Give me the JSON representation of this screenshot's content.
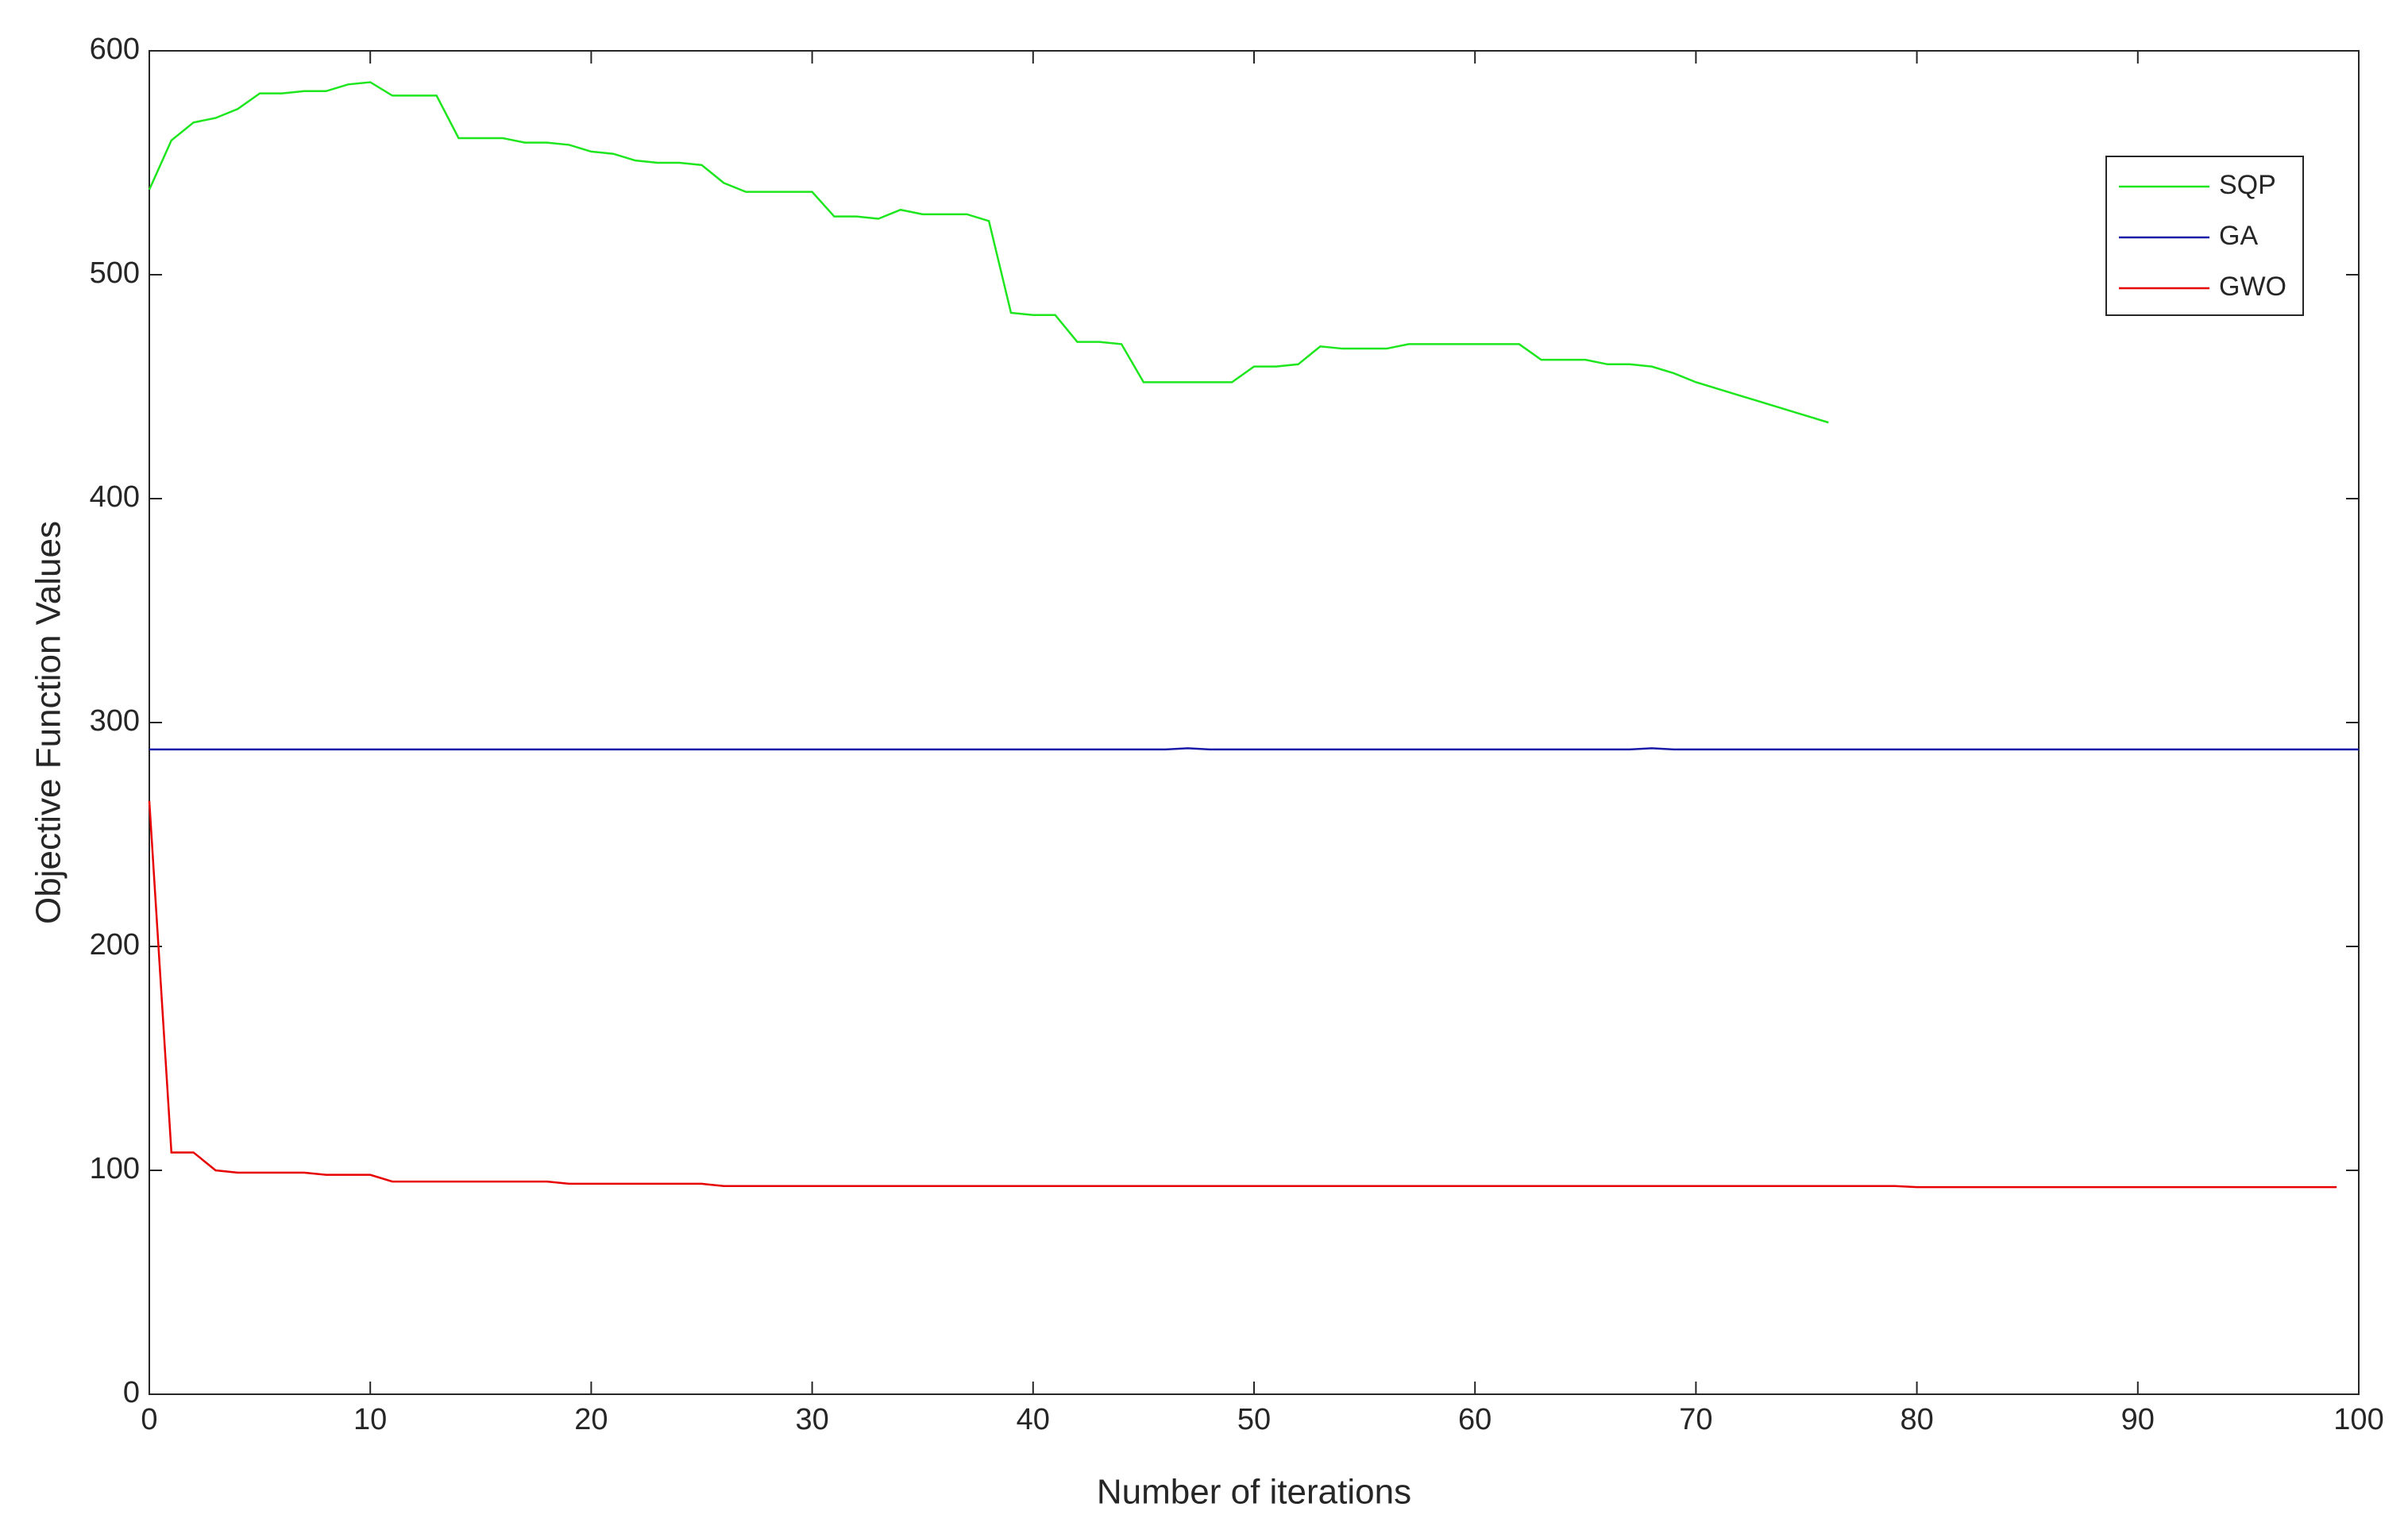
{
  "chart_data": {
    "type": "line",
    "xlabel": "Number of iterations",
    "ylabel": "Objective Function Values",
    "xlim": [
      0,
      100
    ],
    "ylim": [
      0,
      600
    ],
    "xticks": [
      0,
      10,
      20,
      30,
      40,
      50,
      60,
      70,
      80,
      90,
      100
    ],
    "yticks": [
      0,
      100,
      200,
      300,
      400,
      500,
      600
    ],
    "grid": false,
    "legend": "upper right",
    "x": [
      0,
      1,
      2,
      3,
      4,
      5,
      6,
      7,
      8,
      9,
      10,
      11,
      12,
      13,
      14,
      15,
      16,
      17,
      18,
      19,
      20,
      21,
      22,
      23,
      24,
      25,
      26,
      27,
      28,
      29,
      30,
      31,
      32,
      33,
      34,
      35,
      36,
      37,
      38,
      39,
      40,
      41,
      42,
      43,
      44,
      45,
      46,
      47,
      48,
      49,
      50,
      51,
      52,
      53,
      54,
      55,
      56,
      57,
      58,
      59,
      60,
      61,
      62,
      63,
      64,
      65,
      66,
      67,
      68,
      69,
      70,
      71,
      72,
      73,
      74,
      75,
      76,
      77,
      78,
      79,
      80,
      81,
      82,
      83,
      84,
      85,
      86,
      87,
      88,
      89,
      90,
      91,
      92,
      93,
      94,
      95,
      96,
      97,
      98,
      99,
      100
    ],
    "series": [
      {
        "name": "SQP",
        "color": "#1ee61e",
        "values": [
          538,
          560,
          568,
          570,
          574,
          581,
          581,
          582,
          582,
          585,
          586,
          580,
          580,
          580,
          561,
          561,
          561,
          559,
          559,
          558,
          555,
          554,
          551,
          550,
          550,
          549,
          541,
          537,
          537,
          537,
          537,
          526,
          526,
          525,
          529,
          527,
          527,
          527,
          524,
          483,
          482,
          482,
          470,
          470,
          469,
          452,
          452,
          452,
          452,
          452,
          459,
          459,
          460,
          468,
          467,
          467,
          467,
          469,
          469,
          469,
          469,
          469,
          469,
          462,
          462,
          462,
          460,
          460,
          459,
          456,
          452,
          449,
          446,
          443,
          440,
          437,
          434,
          null,
          null,
          null,
          null,
          null,
          null,
          null,
          null,
          null,
          null,
          null,
          null,
          null,
          null,
          null,
          null,
          null,
          null,
          null,
          null,
          null,
          null,
          null,
          null
        ]
      },
      {
        "name": "GA",
        "color": "#1a1aa8",
        "values": [
          288,
          288,
          288,
          288,
          288,
          288,
          288,
          288,
          288,
          288,
          288,
          288,
          288,
          288,
          288,
          288,
          288,
          288,
          288,
          288,
          288,
          288,
          288,
          288,
          288,
          288,
          288,
          288,
          288,
          288,
          288,
          288,
          288,
          288,
          288,
          288,
          288,
          288,
          288,
          288,
          288,
          288,
          288,
          288,
          288,
          288,
          288,
          288.5,
          288,
          288,
          288,
          288,
          288,
          288,
          288,
          288,
          288,
          288,
          288,
          288,
          288,
          288,
          288,
          288,
          288,
          288,
          288,
          288,
          288.5,
          288,
          288,
          288,
          288,
          288,
          288,
          288,
          288,
          288,
          288,
          288,
          288,
          288,
          288,
          288,
          288,
          288,
          288,
          288,
          288,
          288,
          288,
          288,
          288,
          288,
          288,
          288,
          288,
          288,
          288,
          288,
          288
        ]
      },
      {
        "name": "GWO",
        "color": "#e60000",
        "values": [
          265,
          108,
          108,
          100,
          99,
          99,
          99,
          99,
          98,
          98,
          98,
          95,
          95,
          95,
          95,
          95,
          95,
          95,
          95,
          94,
          94,
          94,
          94,
          94,
          94,
          94,
          93,
          93,
          93,
          93,
          93,
          93,
          93,
          93,
          93,
          93,
          93,
          93,
          93,
          93,
          93,
          93,
          93,
          93,
          93,
          93,
          93,
          93,
          93,
          93,
          93,
          93,
          93,
          93,
          93,
          93,
          93,
          93,
          93,
          93,
          93,
          93,
          93,
          93,
          93,
          93,
          93,
          93,
          93,
          93,
          93,
          93,
          93,
          93,
          93,
          93,
          93,
          93,
          93,
          93,
          92.5,
          92.5,
          92.5,
          92.5,
          92.5,
          92.5,
          92.5,
          92.5,
          92.5,
          92.5,
          92.5,
          92.5,
          92.5,
          92.5,
          92.5,
          92.5,
          92.5,
          92.5,
          92.5,
          92.5,
          null
        ]
      }
    ]
  }
}
